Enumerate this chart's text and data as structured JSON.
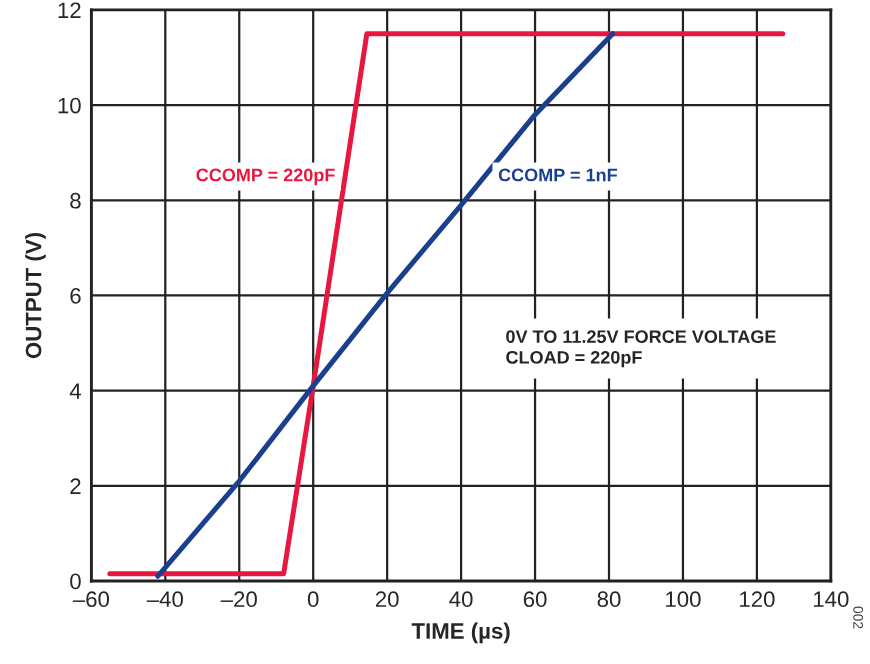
{
  "chart_data": {
    "type": "line",
    "xlabel": "TIME (µs)",
    "ylabel": "OUTPUT (V)",
    "xlim": [
      -60,
      140
    ],
    "xticks": [
      {
        "value": -60,
        "label": "–60"
      },
      {
        "value": -40,
        "label": "–40"
      },
      {
        "value": -20,
        "label": "–20"
      },
      0,
      20,
      40,
      60,
      80,
      100,
      120,
      140
    ],
    "ylim": [
      0,
      12
    ],
    "yticks": [
      0,
      2,
      4,
      6,
      8,
      10,
      12
    ],
    "grid": true,
    "legend": false,
    "marker": "none",
    "line_style": "solid",
    "series": [
      {
        "name": "CCOMP = 220pF",
        "color": "#e8173f",
        "x": [
          -55,
          -30,
          -8,
          0,
          14.5,
          40,
          80,
          127
        ],
        "values": [
          0.15,
          0.15,
          0.15,
          4.1,
          11.5,
          11.5,
          11.5,
          11.5
        ]
      },
      {
        "name": "CCOMP = 1nF",
        "color": "#1a3f8f",
        "x": [
          -42,
          -20,
          0,
          20,
          40,
          60,
          81
        ],
        "values": [
          0.1,
          2.1,
          4.1,
          6.05,
          7.9,
          9.8,
          11.5
        ]
      }
    ],
    "annotations": [
      "0V TO 11.25V FORCE VOLTAGE\nCLOAD = 220pF",
      "002"
    ]
  }
}
